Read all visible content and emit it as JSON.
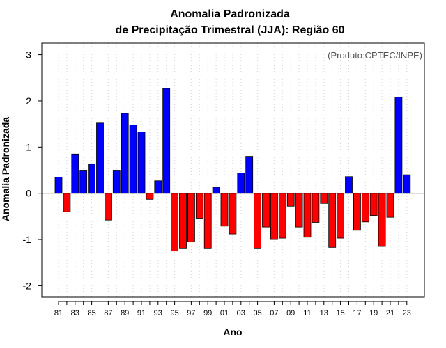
{
  "chart_data": {
    "type": "bar",
    "title": [
      "Anomalia Padronizada",
      "de Precipitação Trimestral (JJA): Região 60"
    ],
    "credit": "(Produto:CPTEC/INPE)",
    "xlabel": "Ano",
    "ylabel": "Anomalia Padronizada",
    "ylim": [
      -2.25,
      3.25
    ],
    "yticks": [
      "-2",
      "-1",
      "0",
      "1",
      "2",
      "3"
    ],
    "grid": "vertical-dotted",
    "colors": {
      "positive": "#0000ff",
      "negative": "#ff0000",
      "zero_line": "#000000",
      "grid": "#d3d3d3"
    },
    "xtick_labels": [
      "81",
      "83",
      "85",
      "87",
      "89",
      "91",
      "93",
      "95",
      "97",
      "99",
      "01",
      "03",
      "05",
      "07",
      "09",
      "11",
      "13",
      "15",
      "17",
      "19",
      "21",
      "23"
    ],
    "categories": [
      "81",
      "82",
      "83",
      "84",
      "85",
      "86",
      "87",
      "88",
      "89",
      "90",
      "91",
      "92",
      "93",
      "94",
      "95",
      "96",
      "97",
      "98",
      "99",
      "00",
      "01",
      "02",
      "03",
      "04",
      "05",
      "06",
      "07",
      "08",
      "09",
      "10",
      "11",
      "12",
      "13",
      "14",
      "15",
      "16",
      "17",
      "18",
      "19",
      "20",
      "21",
      "22",
      "23"
    ],
    "values": [
      0.35,
      -0.4,
      0.85,
      0.5,
      0.63,
      1.52,
      -0.58,
      0.5,
      1.73,
      1.48,
      1.33,
      -0.13,
      0.27,
      2.27,
      -1.25,
      -1.2,
      -1.05,
      -0.54,
      -1.2,
      0.13,
      -0.71,
      -0.88,
      0.44,
      0.8,
      -1.2,
      -0.73,
      -1.0,
      -0.97,
      -0.28,
      -0.73,
      -0.95,
      -0.63,
      -0.22,
      -1.17,
      -0.97,
      0.36,
      -0.8,
      -0.62,
      -0.48,
      -1.15,
      -0.52,
      2.08,
      0.4
    ]
  }
}
